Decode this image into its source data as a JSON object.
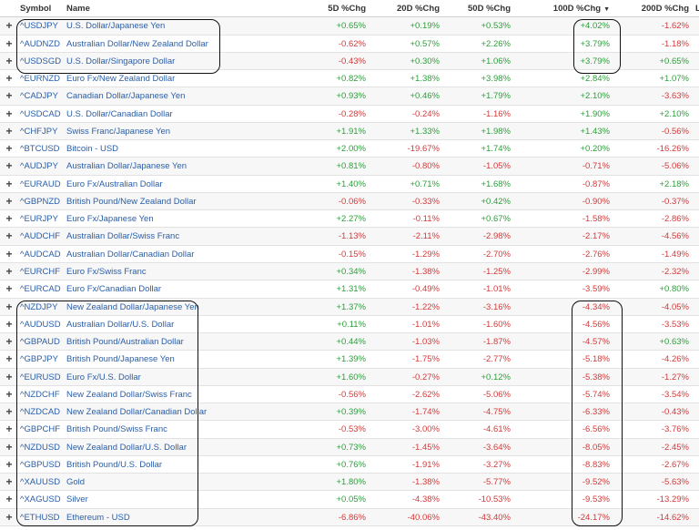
{
  "header": {
    "symbol": "Symbol",
    "name": "Name",
    "d5": "5D %Chg",
    "d20": "20D %Chg",
    "d50": "50D %Chg",
    "d100": "100D %Chg",
    "d200": "200D %Chg",
    "extra": "L",
    "sort_icon": "sort-desc-icon"
  },
  "colors": {
    "positive": "#2e9e3c",
    "negative": "#d23b3b",
    "link": "#2a5ea8"
  },
  "rows": [
    {
      "symbol": "^USDJPY",
      "name": "U.S. Dollar/Japanese Yen",
      "d5": "+0.65%",
      "d20": "+0.19%",
      "d50": "+0.53%",
      "d100": "+4.02%",
      "d200": "-1.62%"
    },
    {
      "symbol": "^AUDNZD",
      "name": "Australian Dollar/New Zealand Dollar",
      "d5": "-0.62%",
      "d20": "+0.57%",
      "d50": "+2.26%",
      "d100": "+3.79%",
      "d200": "-1.18%"
    },
    {
      "symbol": "^USDSGD",
      "name": "U.S. Dollar/Singapore Dollar",
      "d5": "-0.43%",
      "d20": "+0.30%",
      "d50": "+1.06%",
      "d100": "+3.79%",
      "d200": "+0.65%"
    },
    {
      "symbol": "^EURNZD",
      "name": "Euro Fx/New Zealand Dollar",
      "d5": "+0.82%",
      "d20": "+1.38%",
      "d50": "+3.98%",
      "d100": "+2.84%",
      "d200": "+1.07%"
    },
    {
      "symbol": "^CADJPY",
      "name": "Canadian Dollar/Japanese Yen",
      "d5": "+0.93%",
      "d20": "+0.46%",
      "d50": "+1.79%",
      "d100": "+2.10%",
      "d200": "-3.63%"
    },
    {
      "symbol": "^USDCAD",
      "name": "U.S. Dollar/Canadian Dollar",
      "d5": "-0.28%",
      "d20": "-0.24%",
      "d50": "-1.16%",
      "d100": "+1.90%",
      "d200": "+2.10%"
    },
    {
      "symbol": "^CHFJPY",
      "name": "Swiss Franc/Japanese Yen",
      "d5": "+1.91%",
      "d20": "+1.33%",
      "d50": "+1.98%",
      "d100": "+1.43%",
      "d200": "-0.56%"
    },
    {
      "symbol": "^BTCUSD",
      "name": "Bitcoin - USD",
      "d5": "+2.00%",
      "d20": "-19.67%",
      "d50": "+1.74%",
      "d100": "+0.20%",
      "d200": "-16.26%"
    },
    {
      "symbol": "^AUDJPY",
      "name": "Australian Dollar/Japanese Yen",
      "d5": "+0.81%",
      "d20": "-0.80%",
      "d50": "-1.05%",
      "d100": "-0.71%",
      "d200": "-5.06%"
    },
    {
      "symbol": "^EURAUD",
      "name": "Euro Fx/Australian Dollar",
      "d5": "+1.40%",
      "d20": "+0.71%",
      "d50": "+1.68%",
      "d100": "-0.87%",
      "d200": "+2.18%"
    },
    {
      "symbol": "^GBPNZD",
      "name": "British Pound/New Zealand Dollar",
      "d5": "-0.06%",
      "d20": "-0.33%",
      "d50": "+0.42%",
      "d100": "-0.90%",
      "d200": "-0.37%"
    },
    {
      "symbol": "^EURJPY",
      "name": "Euro Fx/Japanese Yen",
      "d5": "+2.27%",
      "d20": "-0.11%",
      "d50": "+0.67%",
      "d100": "-1.58%",
      "d200": "-2.86%"
    },
    {
      "symbol": "^AUDCHF",
      "name": "Australian Dollar/Swiss Franc",
      "d5": "-1.13%",
      "d20": "-2.11%",
      "d50": "-2.98%",
      "d100": "-2.17%",
      "d200": "-4.56%"
    },
    {
      "symbol": "^AUDCAD",
      "name": "Australian Dollar/Canadian Dollar",
      "d5": "-0.15%",
      "d20": "-1.29%",
      "d50": "-2.70%",
      "d100": "-2.76%",
      "d200": "-1.49%"
    },
    {
      "symbol": "^EURCHF",
      "name": "Euro Fx/Swiss Franc",
      "d5": "+0.34%",
      "d20": "-1.38%",
      "d50": "-1.25%",
      "d100": "-2.99%",
      "d200": "-2.32%"
    },
    {
      "symbol": "^EURCAD",
      "name": "Euro Fx/Canadian Dollar",
      "d5": "+1.31%",
      "d20": "-0.49%",
      "d50": "-1.01%",
      "d100": "-3.59%",
      "d200": "+0.80%"
    },
    {
      "symbol": "^NZDJPY",
      "name": "New Zealand Dollar/Japanese Yen",
      "d5": "+1.37%",
      "d20": "-1.22%",
      "d50": "-3.16%",
      "d100": "-4.34%",
      "d200": "-4.05%"
    },
    {
      "symbol": "^AUDUSD",
      "name": "Australian Dollar/U.S. Dollar",
      "d5": "+0.11%",
      "d20": "-1.01%",
      "d50": "-1.60%",
      "d100": "-4.56%",
      "d200": "-3.53%"
    },
    {
      "symbol": "^GBPAUD",
      "name": "British Pound/Australian Dollar",
      "d5": "+0.44%",
      "d20": "-1.03%",
      "d50": "-1.87%",
      "d100": "-4.57%",
      "d200": "+0.63%"
    },
    {
      "symbol": "^GBPJPY",
      "name": "British Pound/Japanese Yen",
      "d5": "+1.39%",
      "d20": "-1.75%",
      "d50": "-2.77%",
      "d100": "-5.18%",
      "d200": "-4.26%"
    },
    {
      "symbol": "^EURUSD",
      "name": "Euro Fx/U.S. Dollar",
      "d5": "+1.60%",
      "d20": "-0.27%",
      "d50": "+0.12%",
      "d100": "-5.38%",
      "d200": "-1.27%"
    },
    {
      "symbol": "^NZDCHF",
      "name": "New Zealand Dollar/Swiss Franc",
      "d5": "-0.56%",
      "d20": "-2.62%",
      "d50": "-5.06%",
      "d100": "-5.74%",
      "d200": "-3.54%"
    },
    {
      "symbol": "^NZDCAD",
      "name": "New Zealand Dollar/Canadian Dollar",
      "d5": "+0.39%",
      "d20": "-1.74%",
      "d50": "-4.75%",
      "d100": "-6.33%",
      "d200": "-0.43%"
    },
    {
      "symbol": "^GBPCHF",
      "name": "British Pound/Swiss Franc",
      "d5": "-0.53%",
      "d20": "-3.00%",
      "d50": "-4.61%",
      "d100": "-6.56%",
      "d200": "-3.76%"
    },
    {
      "symbol": "^NZDUSD",
      "name": "New Zealand Dollar/U.S. Dollar",
      "d5": "+0.73%",
      "d20": "-1.45%",
      "d50": "-3.64%",
      "d100": "-8.05%",
      "d200": "-2.45%"
    },
    {
      "symbol": "^GBPUSD",
      "name": "British Pound/U.S. Dollar",
      "d5": "+0.76%",
      "d20": "-1.91%",
      "d50": "-3.27%",
      "d100": "-8.83%",
      "d200": "-2.67%"
    },
    {
      "symbol": "^XAUUSD",
      "name": "Gold",
      "d5": "+1.80%",
      "d20": "-1.38%",
      "d50": "-5.77%",
      "d100": "-9.52%",
      "d200": "-5.63%"
    },
    {
      "symbol": "^XAGUSD",
      "name": "Silver",
      "d5": "+0.05%",
      "d20": "-4.38%",
      "d50": "-10.53%",
      "d100": "-9.53%",
      "d200": "-13.29%"
    },
    {
      "symbol": "^ETHUSD",
      "name": "Ethereum - USD",
      "d5": "-6.86%",
      "d20": "-40.06%",
      "d50": "-43.40%",
      "d100": "-24.17%",
      "d200": "-14.62%"
    }
  ]
}
